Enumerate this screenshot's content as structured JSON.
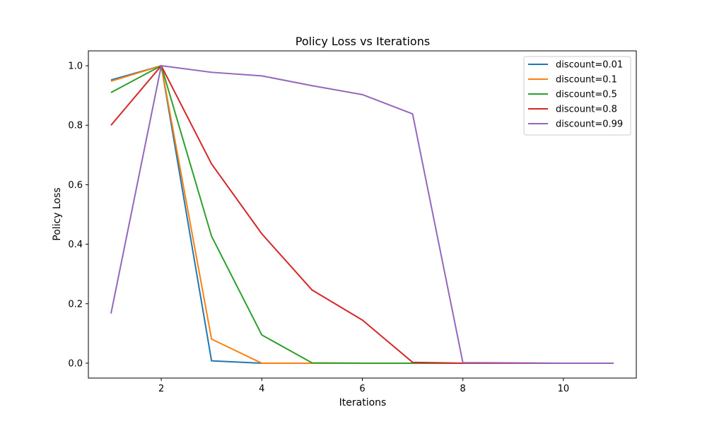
{
  "chart_data": {
    "type": "line",
    "title": "Policy Loss vs Iterations",
    "xlabel": "Iterations",
    "ylabel": "Policy Loss",
    "xlim": [
      0.55,
      11.45
    ],
    "ylim": [
      -0.05,
      1.05
    ],
    "xticks": [
      2,
      4,
      6,
      8,
      10
    ],
    "yticks": [
      0.0,
      0.2,
      0.4,
      0.6,
      0.8,
      1.0
    ],
    "xtick_labels": [
      "2",
      "4",
      "6",
      "8",
      "10"
    ],
    "ytick_labels": [
      "0.0",
      "0.2",
      "0.4",
      "0.6",
      "0.8",
      "1.0"
    ],
    "grid": false,
    "legend_position": "top-right",
    "x": [
      1,
      2,
      3,
      4,
      5,
      6,
      7,
      8,
      9,
      10,
      11
    ],
    "series": [
      {
        "name": "discount=0.01",
        "color": "#1f77b4",
        "values": [
          0.952,
          1.0,
          0.008,
          0.0,
          0.0,
          0.0,
          0.0,
          0.0,
          0.0,
          0.0,
          0.0
        ]
      },
      {
        "name": "discount=0.1",
        "color": "#ff7f0e",
        "values": [
          0.948,
          1.0,
          0.081,
          0.0,
          0.0,
          0.0,
          0.0,
          0.0,
          0.0,
          0.0,
          0.0
        ]
      },
      {
        "name": "discount=0.5",
        "color": "#2ca02c",
        "values": [
          0.91,
          1.0,
          0.427,
          0.095,
          0.001,
          0.0,
          0.0,
          0.0,
          0.0,
          0.0,
          0.0
        ]
      },
      {
        "name": "discount=0.8",
        "color": "#d62728",
        "values": [
          0.8,
          1.0,
          0.67,
          0.435,
          0.246,
          0.145,
          0.003,
          0.0,
          0.0,
          0.0,
          0.0
        ]
      },
      {
        "name": "discount=0.99",
        "color": "#9467bd",
        "values": [
          0.167,
          1.0,
          0.978,
          0.966,
          0.933,
          0.903,
          0.838,
          0.002,
          0.001,
          0.0,
          0.0
        ]
      }
    ]
  }
}
